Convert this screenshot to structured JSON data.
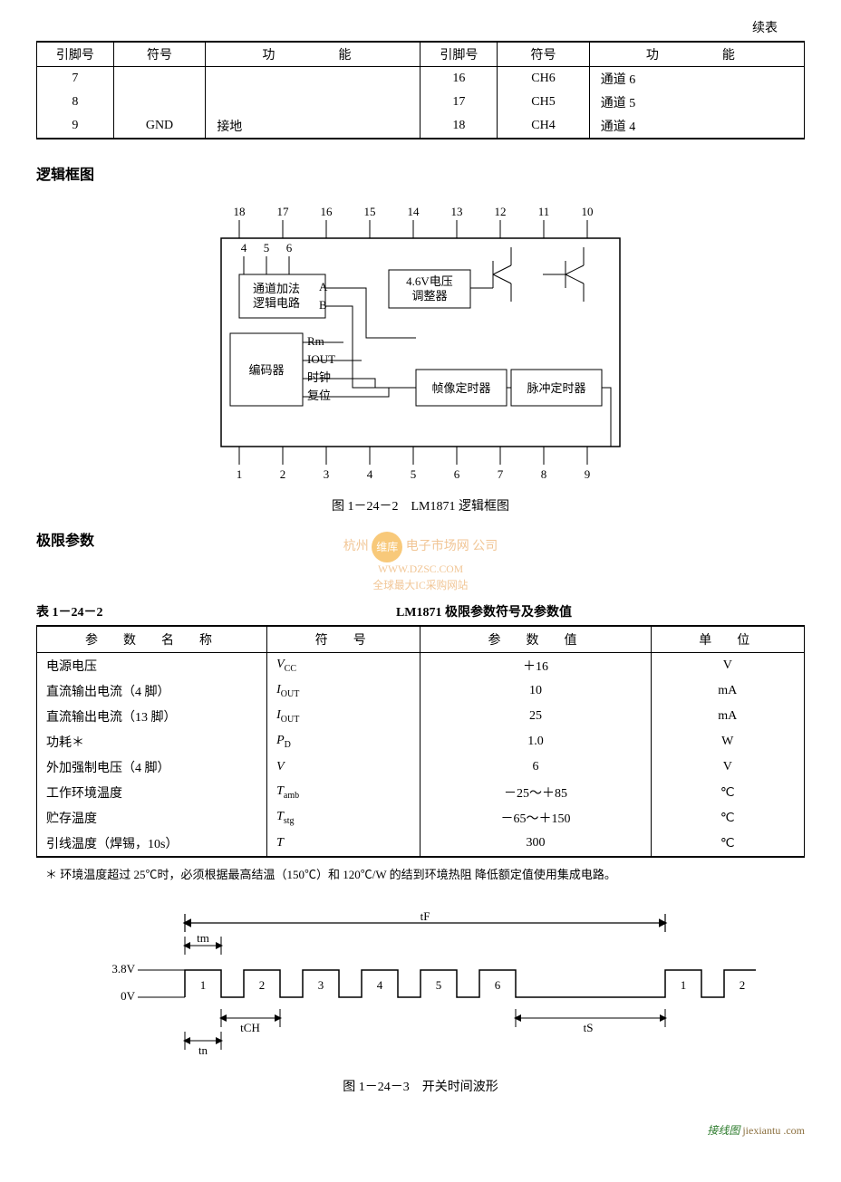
{
  "continued_label": "续表",
  "pin_table": {
    "headers_left": [
      "引脚号",
      "符号",
      "功　　能"
    ],
    "headers_right": [
      "引脚号",
      "符号",
      "功　　能"
    ],
    "rows": [
      {
        "l_num": "7",
        "l_sym": "",
        "l_func": "",
        "r_num": "16",
        "r_sym": "CH6",
        "r_func": "通道 6"
      },
      {
        "l_num": "8",
        "l_sym": "",
        "l_func": "",
        "r_num": "17",
        "r_sym": "CH5",
        "r_func": "通道 5"
      },
      {
        "l_num": "9",
        "l_sym": "GND",
        "l_func": "接地",
        "r_num": "18",
        "r_sym": "CH4",
        "r_func": "通道 4"
      }
    ]
  },
  "section_logic_title": "逻辑框图",
  "block_diagram": {
    "pins_top": [
      "18",
      "17",
      "16",
      "15",
      "14",
      "13",
      "12",
      "11",
      "10"
    ],
    "pins_bottom": [
      "1",
      "2",
      "3",
      "4",
      "5",
      "6",
      "7",
      "8",
      "9"
    ],
    "left_labels": [
      "4",
      "5",
      "6"
    ],
    "box_chan_add": "通道加法\n逻辑电路",
    "chan_AB": [
      "A",
      "B"
    ],
    "box_encoder": "编码器",
    "enc_labels": [
      "Rm",
      "IOUT",
      "时钟",
      "复位"
    ],
    "box_vreg": "4.6V电压\n调整器",
    "box_frame": "帧像定时器",
    "box_pulse": "脉冲定时器"
  },
  "fig_block_caption": "图 1－24－2　LM1871 逻辑框图",
  "watermark_company": "杭州",
  "watermark_brand": "维库",
  "watermark_text1": "电子市场网",
  "watermark_text2": "WWW.DZSC.COM",
  "watermark_text3": "全球最大IC采购网站",
  "watermark_company2": "公司",
  "section_param_title": "极限参数",
  "table_number": "表 1－24－2",
  "table_title": "LM1871 极限参数符号及参数值",
  "param_table": {
    "headers": [
      "参　数　名　称",
      "符　号",
      "参　数　值",
      "单　位"
    ],
    "rows": [
      {
        "name": "电源电压",
        "sym": "V",
        "sub": "CC",
        "val": "＋16",
        "unit": "V"
      },
      {
        "name": "直流输出电流（4 脚）",
        "sym": "I",
        "sub": "OUT",
        "val": "10",
        "unit": "mA"
      },
      {
        "name": "直流输出电流（13 脚）",
        "sym": "I",
        "sub": "OUT",
        "val": "25",
        "unit": "mA"
      },
      {
        "name": "功耗＊",
        "sym": "P",
        "sub": "D",
        "val": "1.0",
        "unit": "W"
      },
      {
        "name": "外加强制电压（4 脚）",
        "sym": "V",
        "sub": "",
        "val": "6",
        "unit": "V"
      },
      {
        "name": "工作环境温度",
        "sym": "T",
        "sub": "amb",
        "val": "－25～＋85",
        "unit": "℃"
      },
      {
        "name": "贮存温度",
        "sym": "T",
        "sub": "stg",
        "val": "－65～＋150",
        "unit": "℃"
      },
      {
        "name": "引线温度（焊锡，10s）",
        "sym": "T",
        "sub": "",
        "val": "300",
        "unit": "℃"
      }
    ]
  },
  "footnote": "＊ 环境温度超过 25℃时，必须根据最高结温（150℃）和 120℃/W 的结到环境热阻 降低额定值使用集成电路。",
  "waveform": {
    "v_high_label": "3.8V",
    "v_low_label": "0V",
    "tF": "tF",
    "tm": "tm",
    "tn": "tn",
    "tCH": "tCH",
    "tS": "tS",
    "pulse_labels": [
      "1",
      "2",
      "3",
      "4",
      "5",
      "6",
      "1",
      "2"
    ]
  },
  "fig_wave_caption": "图 1－24－3　开关时间波形",
  "bottom_logo_left": "接线图",
  "bottom_logo_right": "jiexiantu .com"
}
